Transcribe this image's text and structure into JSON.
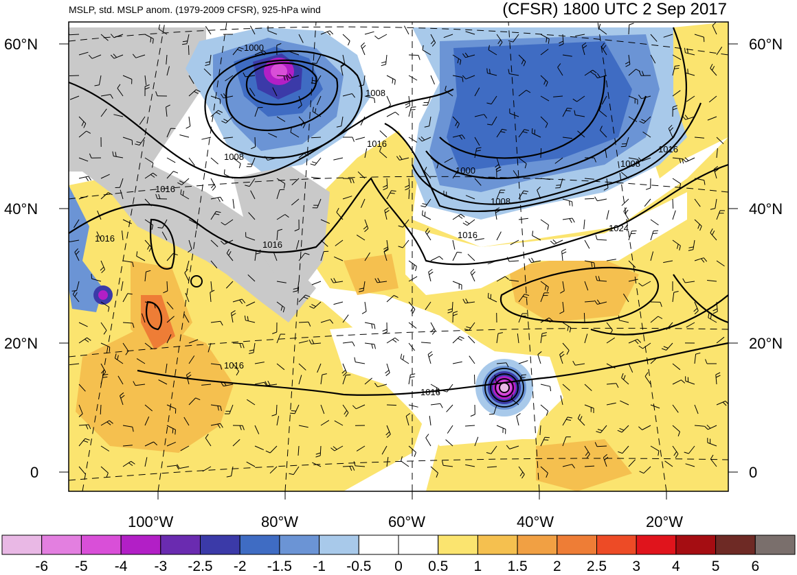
{
  "header": {
    "left_title": "MSLP, std. MSLP anom. (1979-2009 CFSR), 925-hPa wind",
    "right_title": "(CFSR) 1800 UTC 2 Sep 2017"
  },
  "axes": {
    "lat_labels": [
      "60°N",
      "40°N",
      "20°N",
      "0"
    ],
    "lon_labels": [
      "100°W",
      "80°W",
      "60°W",
      "40°W",
      "20°W"
    ]
  },
  "contour_labels": [
    "1000",
    "1008",
    "1008",
    "1016",
    "1016",
    "1016",
    "1000",
    "1008",
    "1008",
    "1016",
    "1016",
    "1024",
    "1016",
    "1016",
    "1016"
  ],
  "colorbar": {
    "labels": [
      "-6",
      "-5",
      "-4",
      "-3",
      "-2.5",
      "-2",
      "-1.5",
      "-1",
      "-0.5",
      "0",
      "0.5",
      "1",
      "1.5",
      "2",
      "2.5",
      "3",
      "4",
      "5",
      "6"
    ],
    "colors": [
      "#e9b8e5",
      "#e37fe0",
      "#d94fd8",
      "#b21fc6",
      "#6a2bb0",
      "#3b3aa8",
      "#3f6cc3",
      "#6b94d5",
      "#a8c9ea",
      "#ffffff",
      "#ffffff",
      "#fbe46f",
      "#f5c04f",
      "#f1a043",
      "#ee7d36",
      "#ed4b26",
      "#e0141c",
      "#a50d12",
      "#6e2a25",
      "#7a6f6c"
    ]
  },
  "map_colors": {
    "ocean_white": "#ffffff",
    "gray_high": "#c9c9c9",
    "light_blue": "#a8c9ea",
    "mid_blue": "#6b94d5",
    "dark_blue": "#3f6cc3",
    "deep_blue": "#3b3aa8",
    "purple": "#b21fc6",
    "magenta": "#d94fd8",
    "pink": "#e9b8e5",
    "yellow": "#fbe46f",
    "light_orange": "#f5c04f",
    "orange": "#f1a043",
    "dark_orange": "#ee7d36",
    "red_orange": "#ed4b26"
  }
}
